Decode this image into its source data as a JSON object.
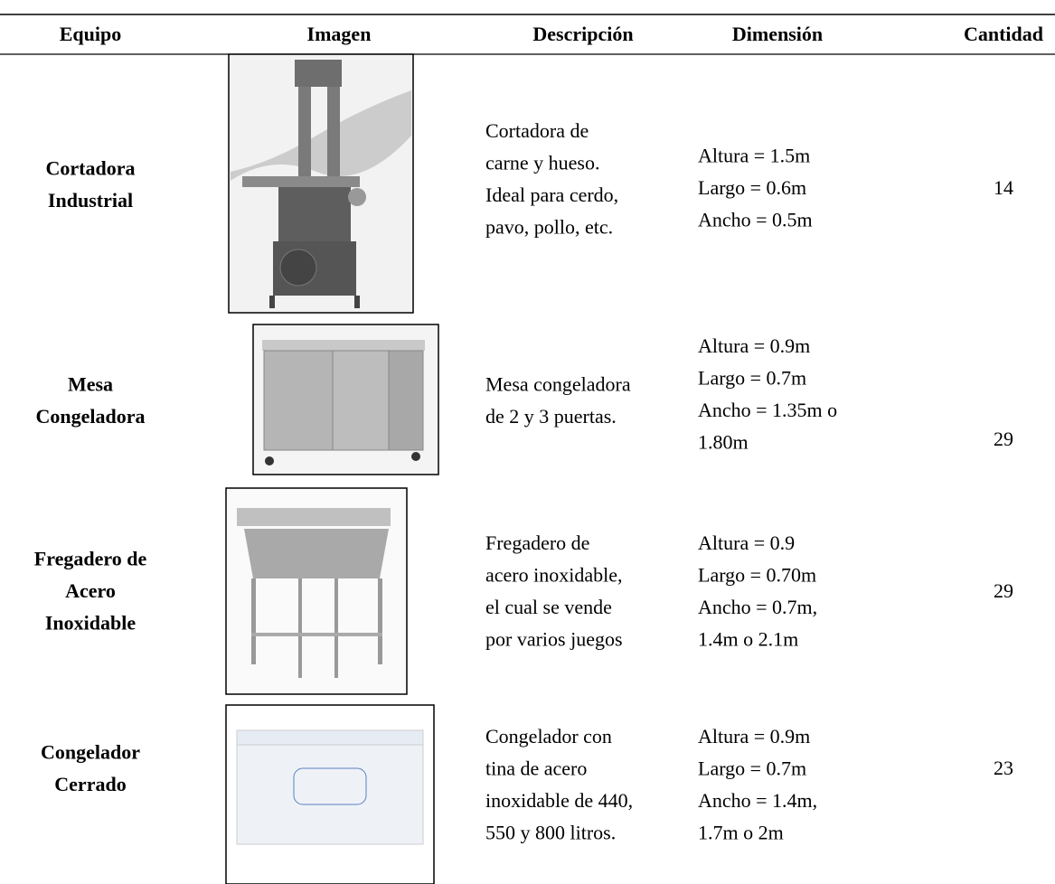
{
  "table": {
    "header": [
      "Equipo",
      "Imagen",
      "Descripción",
      "Dimensión",
      "Cantidad"
    ],
    "rows": [
      {
        "equipo": [
          "Cortadora",
          "Industrial"
        ],
        "descripcion": [
          "Cortadora de",
          "carne y hueso.",
          "Ideal para cerdo,",
          "pavo, pollo, etc."
        ],
        "dimension": [
          "Altura = 1.5m",
          "Largo = 0.6m",
          "Ancho = 0.5m"
        ],
        "cantidad": 14
      },
      {
        "equipo": [
          "Mesa",
          "Congeladora"
        ],
        "descripcion": [
          "Mesa congeladora",
          "de 2 y 3 puertas."
        ],
        "dimension": [
          "Altura = 0.9m",
          "Largo = 0.7m",
          "Ancho = 1.35m o",
          "1.80m"
        ],
        "cantidad": 29
      },
      {
        "equipo": [
          "Fregadero de",
          "Acero",
          "Inoxidable"
        ],
        "descripcion": [
          "Fregadero de",
          "acero inoxidable,",
          "el cual se vende",
          "por varios juegos"
        ],
        "dimension": [
          "Altura = 0.9",
          "Largo = 0.70m",
          "Ancho = 0.7m,",
          "1.4m o 2.1m"
        ],
        "cantidad": 29
      },
      {
        "equipo": [
          "Congelador",
          "Cerrado"
        ],
        "descripcion": [
          "Congelador con",
          "tina de acero",
          "inoxidable de 440,",
          "550 y 800 litros."
        ],
        "dimension": [
          "Altura = 0.9m",
          "Largo = 0.7m",
          "Ancho = 1.4m,",
          "1.7m o 2m"
        ],
        "cantidad": 23
      }
    ]
  }
}
